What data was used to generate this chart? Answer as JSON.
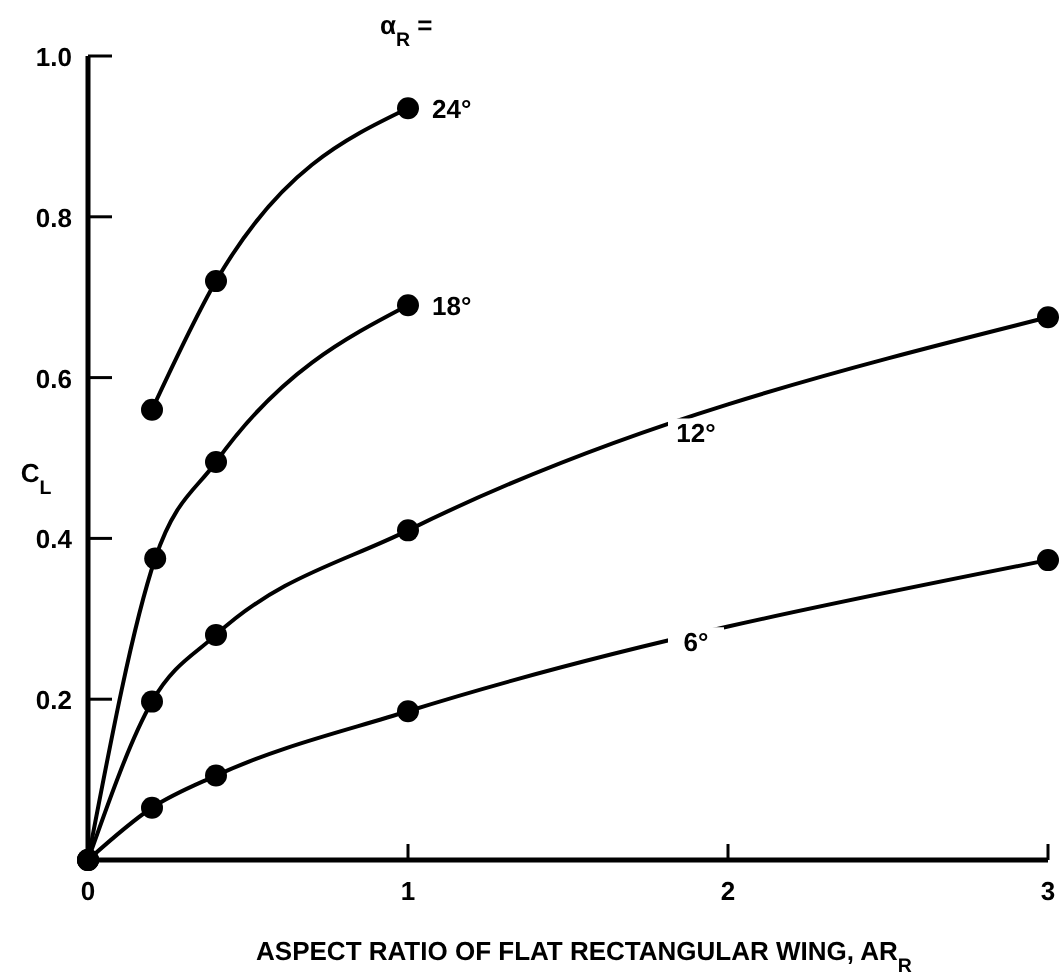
{
  "chart_data": {
    "type": "line",
    "xlabel": "ASPECT RATIO OF FLAT RECTANGULAR WING, AR$_{R}$",
    "ylabel": "C$_{L}$",
    "legend_title": "α$_{R}$ =",
    "xlim": [
      0,
      3
    ],
    "ylim": [
      0,
      1
    ],
    "xticks": [
      0,
      1,
      2,
      3
    ],
    "yticks": [
      0.2,
      0.4,
      0.6,
      0.8,
      {
        "value": 1,
        "label": "1.0"
      }
    ],
    "marker": "circle",
    "line_style": "solid",
    "grid": false,
    "series": [
      {
        "name": "24°",
        "color": "#000000",
        "x": [
          0.2,
          0.4,
          1
        ],
        "values": [
          0.56,
          0.72,
          0.935
        ]
      },
      {
        "name": "18°",
        "color": "#000000",
        "x": [
          0,
          0.21,
          0.4,
          1
        ],
        "values": [
          0,
          0.375,
          0.495,
          0.69
        ]
      },
      {
        "name": "12°",
        "color": "#000000",
        "x": [
          0,
          0.2,
          0.4,
          1,
          3
        ],
        "values": [
          0,
          0.197,
          0.28,
          0.41,
          0.675
        ]
      },
      {
        "name": "6°",
        "color": "#000000",
        "x": [
          0,
          0.2,
          0.4,
          1,
          3
        ],
        "values": [
          0,
          0.065,
          0.105,
          0.185,
          0.373
        ]
      }
    ]
  }
}
